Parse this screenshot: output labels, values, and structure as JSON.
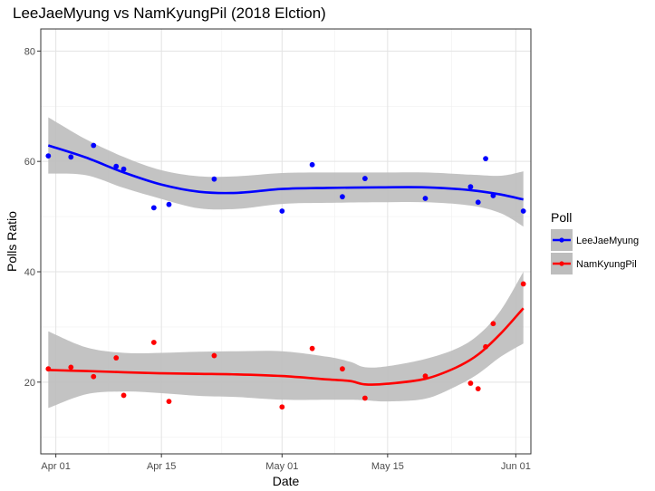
{
  "chart_data": {
    "type": "scatter",
    "title": "LeeJaeMyung vs NamKyungPil (2018 Elction)",
    "xlabel": "Date",
    "ylabel": "Polls Ratio",
    "x_type": "date",
    "xlim": [
      "2018-03-30",
      "2018-06-03"
    ],
    "ylim": [
      7,
      84
    ],
    "x_ticks": [
      {
        "date": "2018-04-01",
        "label": "Apr 01"
      },
      {
        "date": "2018-04-15",
        "label": "Apr 15"
      },
      {
        "date": "2018-05-01",
        "label": "May 01"
      },
      {
        "date": "2018-05-15",
        "label": "May 15"
      },
      {
        "date": "2018-06-01",
        "label": "Jun 01"
      }
    ],
    "y_ticks": [
      20,
      40,
      60,
      80
    ],
    "grid": true,
    "legend_title": "Poll",
    "legend_position": "right",
    "series": [
      {
        "name": "LeeJaeMyung",
        "color": "#0000ff",
        "points": [
          {
            "x": "2018-03-31",
            "y": 61.0
          },
          {
            "x": "2018-04-03",
            "y": 60.8
          },
          {
            "x": "2018-04-06",
            "y": 62.9
          },
          {
            "x": "2018-04-09",
            "y": 59.1
          },
          {
            "x": "2018-04-10",
            "y": 58.6
          },
          {
            "x": "2018-04-14",
            "y": 51.6
          },
          {
            "x": "2018-04-16",
            "y": 52.2
          },
          {
            "x": "2018-04-22",
            "y": 56.8
          },
          {
            "x": "2018-05-01",
            "y": 51.0
          },
          {
            "x": "2018-05-05",
            "y": 59.4
          },
          {
            "x": "2018-05-09",
            "y": 53.6
          },
          {
            "x": "2018-05-12",
            "y": 56.9
          },
          {
            "x": "2018-05-20",
            "y": 53.3
          },
          {
            "x": "2018-05-26",
            "y": 55.4
          },
          {
            "x": "2018-05-27",
            "y": 52.6
          },
          {
            "x": "2018-05-28",
            "y": 60.5
          },
          {
            "x": "2018-05-29",
            "y": 53.8
          },
          {
            "x": "2018-06-02",
            "y": 51.0
          }
        ],
        "smooth": [
          {
            "x": "2018-03-31",
            "y": 62.9,
            "lo": 57.8,
            "hi": 68.0
          },
          {
            "x": "2018-04-05",
            "y": 60.7,
            "lo": 57.5,
            "hi": 64.0
          },
          {
            "x": "2018-04-10",
            "y": 58.0,
            "lo": 55.2,
            "hi": 60.8
          },
          {
            "x": "2018-04-15",
            "y": 55.8,
            "lo": 53.2,
            "hi": 58.4
          },
          {
            "x": "2018-04-20",
            "y": 54.5,
            "lo": 51.5,
            "hi": 57.3
          },
          {
            "x": "2018-04-25",
            "y": 54.3,
            "lo": 51.4,
            "hi": 57.3
          },
          {
            "x": "2018-05-01",
            "y": 55.0,
            "lo": 52.3,
            "hi": 57.9
          },
          {
            "x": "2018-05-07",
            "y": 55.2,
            "lo": 52.5,
            "hi": 58.0
          },
          {
            "x": "2018-05-14",
            "y": 55.3,
            "lo": 52.6,
            "hi": 58.0
          },
          {
            "x": "2018-05-20",
            "y": 55.3,
            "lo": 52.6,
            "hi": 58.0
          },
          {
            "x": "2018-05-26",
            "y": 54.8,
            "lo": 52.0,
            "hi": 57.6
          },
          {
            "x": "2018-05-30",
            "y": 54.0,
            "lo": 50.6,
            "hi": 57.4
          },
          {
            "x": "2018-06-02",
            "y": 53.1,
            "lo": 48.2,
            "hi": 58.2
          }
        ]
      },
      {
        "name": "NamKyungPil",
        "color": "#ff0000",
        "points": [
          {
            "x": "2018-03-31",
            "y": 22.4
          },
          {
            "x": "2018-04-03",
            "y": 22.7
          },
          {
            "x": "2018-04-06",
            "y": 21.0
          },
          {
            "x": "2018-04-09",
            "y": 24.4
          },
          {
            "x": "2018-04-10",
            "y": 17.6
          },
          {
            "x": "2018-04-14",
            "y": 27.2
          },
          {
            "x": "2018-04-16",
            "y": 16.5
          },
          {
            "x": "2018-04-22",
            "y": 24.8
          },
          {
            "x": "2018-05-01",
            "y": 15.5
          },
          {
            "x": "2018-05-05",
            "y": 26.1
          },
          {
            "x": "2018-05-09",
            "y": 22.4
          },
          {
            "x": "2018-05-12",
            "y": 17.1
          },
          {
            "x": "2018-05-20",
            "y": 21.1
          },
          {
            "x": "2018-05-26",
            "y": 19.8
          },
          {
            "x": "2018-05-27",
            "y": 18.8
          },
          {
            "x": "2018-05-28",
            "y": 26.4
          },
          {
            "x": "2018-05-29",
            "y": 30.6
          },
          {
            "x": "2018-06-02",
            "y": 37.8
          }
        ],
        "smooth": [
          {
            "x": "2018-03-31",
            "y": 22.2,
            "lo": 15.3,
            "hi": 29.2
          },
          {
            "x": "2018-04-05",
            "y": 22.0,
            "lo": 17.8,
            "hi": 26.3
          },
          {
            "x": "2018-04-10",
            "y": 21.8,
            "lo": 18.3,
            "hi": 25.3
          },
          {
            "x": "2018-04-15",
            "y": 21.6,
            "lo": 18.0,
            "hi": 25.3
          },
          {
            "x": "2018-04-20",
            "y": 21.5,
            "lo": 17.5,
            "hi": 25.5
          },
          {
            "x": "2018-04-25",
            "y": 21.4,
            "lo": 17.3,
            "hi": 25.6
          },
          {
            "x": "2018-05-01",
            "y": 21.1,
            "lo": 16.8,
            "hi": 25.6
          },
          {
            "x": "2018-05-07",
            "y": 20.5,
            "lo": 16.8,
            "hi": 24.6
          },
          {
            "x": "2018-05-10",
            "y": 20.2,
            "lo": 16.8,
            "hi": 23.7
          },
          {
            "x": "2018-05-12",
            "y": 19.6,
            "lo": 16.7,
            "hi": 22.7
          },
          {
            "x": "2018-05-15",
            "y": 19.7,
            "lo": 16.5,
            "hi": 22.9
          },
          {
            "x": "2018-05-20",
            "y": 20.6,
            "lo": 17.0,
            "hi": 24.2
          },
          {
            "x": "2018-05-24",
            "y": 22.6,
            "lo": 19.2,
            "hi": 26.0
          },
          {
            "x": "2018-05-27",
            "y": 25.0,
            "lo": 21.5,
            "hi": 28.5
          },
          {
            "x": "2018-05-30",
            "y": 28.8,
            "lo": 24.6,
            "hi": 33.0
          },
          {
            "x": "2018-06-02",
            "y": 33.4,
            "lo": 27.0,
            "hi": 40.0
          }
        ]
      }
    ]
  }
}
